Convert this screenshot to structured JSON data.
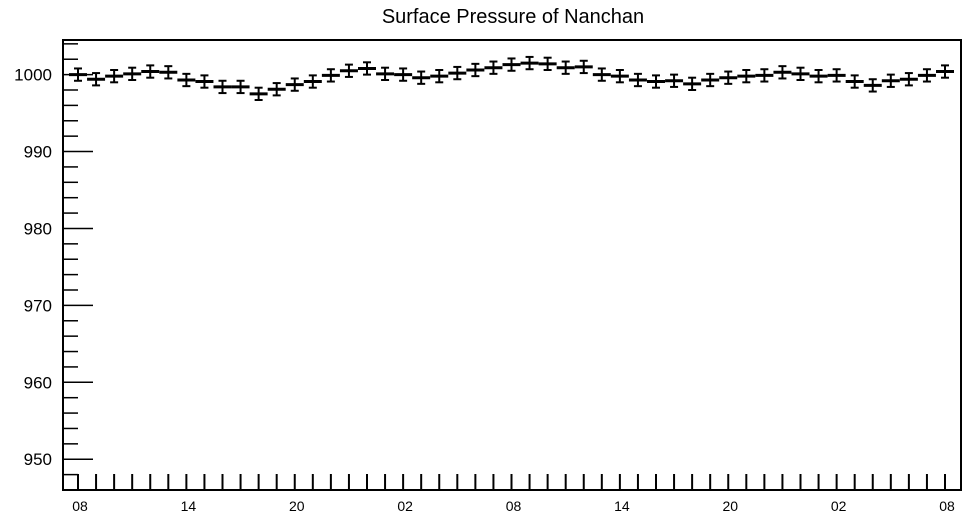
{
  "chart_data": {
    "type": "line",
    "title": "Surface Pressure of Nanchan",
    "xlabel": "",
    "ylabel": "",
    "ylim": [
      946,
      1004.5
    ],
    "grid": false,
    "legend": "none",
    "marker_color": "#000000",
    "y_ticks": [
      950,
      960,
      970,
      980,
      990,
      1000
    ],
    "x_tick_labels": [
      "08",
      "14",
      "20",
      "02",
      "08",
      "14",
      "20",
      "02",
      "08"
    ],
    "series": [
      {
        "values": [
          1000.0,
          999.4,
          999.8,
          1000.1,
          1000.4,
          1000.3,
          999.3,
          999.1,
          998.4,
          998.4,
          997.5,
          998.1,
          998.7,
          999.1,
          999.9,
          1000.5,
          1000.8,
          1000.1,
          1000.0,
          999.6,
          999.8,
          1000.2,
          1000.6,
          1000.9,
          1001.3,
          1001.5,
          1001.4,
          1000.9,
          1001.0,
          1000.0,
          999.8,
          999.3,
          999.1,
          999.2,
          998.8,
          999.3,
          999.6,
          999.8,
          999.9,
          1000.3,
          1000.1,
          999.8,
          999.9,
          999.1,
          998.6,
          999.2,
          999.4,
          999.9,
          1000.4
        ],
        "error": 0.8
      }
    ]
  }
}
